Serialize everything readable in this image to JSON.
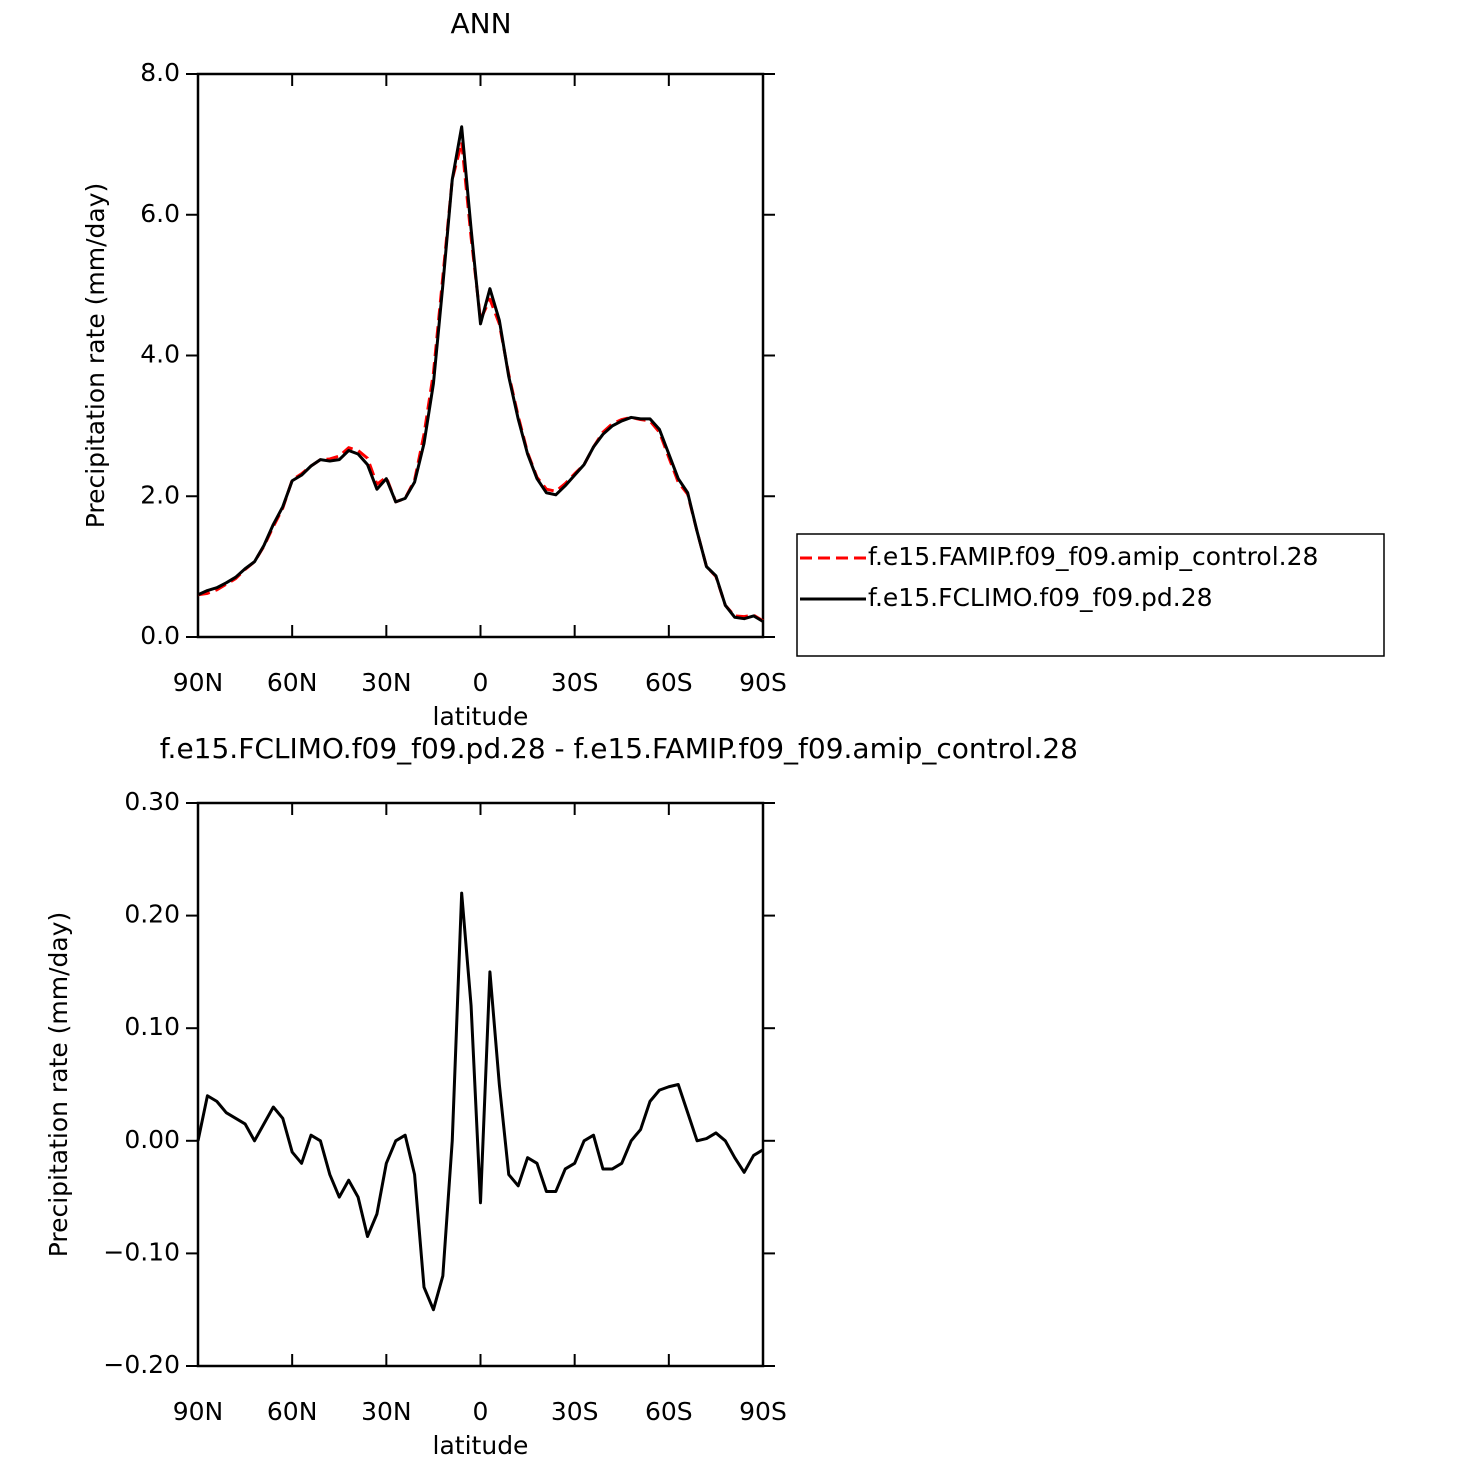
{
  "chart_data": [
    {
      "type": "line",
      "title": "ANN",
      "x_label": "latitude",
      "y_label": "Precipitation rate (mm/day)",
      "x": [
        90,
        87,
        84,
        81,
        78,
        75,
        72,
        69,
        66,
        63,
        60,
        57,
        54,
        51,
        48,
        45,
        42,
        39,
        36,
        33,
        30,
        27,
        24,
        21,
        18,
        15,
        12,
        9,
        6,
        3,
        0,
        -3,
        -6,
        -9,
        -12,
        -15,
        -18,
        -21,
        -24,
        -27,
        -30,
        -33,
        -36,
        -39,
        -42,
        -45,
        -48,
        -51,
        -54,
        -57,
        -60,
        -63,
        -66,
        -69,
        -72,
        -75,
        -78,
        -81,
        -84,
        -87,
        -90
      ],
      "series": [
        {
          "name": "f.e15.FAMIP.f09_f09.amip_control.28",
          "color": "#ff0000",
          "line_style": "dashed",
          "values": [
            0.6,
            0.62,
            0.67,
            0.75,
            0.83,
            0.96,
            1.07,
            1.29,
            1.57,
            1.83,
            2.23,
            2.32,
            2.43,
            2.52,
            2.53,
            2.57,
            2.69,
            2.65,
            2.54,
            2.17,
            2.27,
            1.92,
            1.97,
            2.23,
            2.88,
            3.75,
            5.12,
            6.5,
            7.03,
            5.68,
            4.51,
            4.8,
            4.45,
            3.73,
            3.14,
            2.62,
            2.27,
            2.1,
            2.07,
            2.18,
            2.32,
            2.45,
            2.7,
            2.91,
            3.03,
            3.09,
            3.12,
            3.09,
            3.07,
            2.91,
            2.55,
            2.2,
            2.03,
            1.5,
            1.0,
            0.86,
            0.45,
            0.3,
            0.29,
            0.31,
            0.23
          ]
        },
        {
          "name": "f.e15.FCLIMO.f09_f09.pd.28",
          "color": "#000000",
          "line_style": "solid",
          "values": [
            0.6,
            0.66,
            0.7,
            0.77,
            0.85,
            0.97,
            1.07,
            1.3,
            1.6,
            1.85,
            2.22,
            2.3,
            2.43,
            2.52,
            2.5,
            2.52,
            2.65,
            2.6,
            2.45,
            2.1,
            2.25,
            1.92,
            1.97,
            2.2,
            2.75,
            3.6,
            5.0,
            6.5,
            7.25,
            5.8,
            4.45,
            4.95,
            4.5,
            3.7,
            3.1,
            2.6,
            2.25,
            2.05,
            2.02,
            2.15,
            2.3,
            2.45,
            2.7,
            2.88,
            3.0,
            3.07,
            3.12,
            3.1,
            3.1,
            2.95,
            2.6,
            2.25,
            2.05,
            1.5,
            1.0,
            0.87,
            0.45,
            0.28,
            0.26,
            0.3,
            0.22
          ]
        }
      ],
      "xlim": [
        90,
        -90
      ],
      "xticks": [
        {
          "value": 90,
          "label": "90N"
        },
        {
          "value": 60,
          "label": "60N"
        },
        {
          "value": 30,
          "label": "30N"
        },
        0,
        {
          "value": -30,
          "label": "30S"
        },
        {
          "value": -60,
          "label": "60S"
        },
        {
          "value": -90,
          "label": "90S"
        }
      ],
      "ylim": [
        0,
        8
      ],
      "yticks": [
        {
          "value": 0,
          "label": "0.0"
        },
        {
          "value": 2,
          "label": "2.0"
        },
        {
          "value": 4,
          "label": "4.0"
        },
        {
          "value": 6,
          "label": "6.0"
        },
        {
          "value": 8,
          "label": "8.0"
        }
      ],
      "legend": "right"
    },
    {
      "type": "line",
      "title": "f.e15.FCLIMO.f09_f09.pd.28 - f.e15.FAMIP.f09_f09.amip_control.28",
      "x_label": "latitude",
      "y_label": "Precipitation rate (mm/day)",
      "x": [
        90,
        87,
        84,
        81,
        78,
        75,
        72,
        69,
        66,
        63,
        60,
        57,
        54,
        51,
        48,
        45,
        42,
        39,
        36,
        33,
        30,
        27,
        24,
        21,
        18,
        15,
        12,
        9,
        6,
        3,
        0,
        -3,
        -6,
        -9,
        -12,
        -15,
        -18,
        -21,
        -24,
        -27,
        -30,
        -33,
        -36,
        -39,
        -42,
        -45,
        -48,
        -51,
        -54,
        -57,
        -60,
        -63,
        -66,
        -69,
        -72,
        -75,
        -78,
        -81,
        -84,
        -87,
        -90
      ],
      "series": [
        {
          "color": "#000000",
          "line_style": "solid",
          "values": [
            0.0,
            0.04,
            0.035,
            0.025,
            0.02,
            0.015,
            0.0,
            0.015,
            0.03,
            0.02,
            -0.01,
            -0.02,
            0.005,
            0.0,
            -0.03,
            -0.05,
            -0.035,
            -0.05,
            -0.085,
            -0.065,
            -0.02,
            0.0,
            0.005,
            -0.03,
            -0.13,
            -0.15,
            -0.12,
            0.0,
            0.22,
            0.12,
            -0.055,
            0.15,
            0.05,
            -0.03,
            -0.04,
            -0.015,
            -0.02,
            -0.045,
            -0.045,
            -0.025,
            -0.02,
            0.0,
            0.005,
            -0.025,
            -0.025,
            -0.02,
            0.0,
            0.01,
            0.035,
            0.045,
            0.048,
            0.05,
            0.025,
            0.0,
            0.002,
            0.007,
            0.0,
            -0.015,
            -0.028,
            -0.013,
            -0.008
          ]
        }
      ],
      "xlim": [
        90,
        -90
      ],
      "xticks": [
        {
          "value": 90,
          "label": "90N"
        },
        {
          "value": 60,
          "label": "60N"
        },
        {
          "value": 30,
          "label": "30N"
        },
        0,
        {
          "value": -30,
          "label": "30S"
        },
        {
          "value": -60,
          "label": "60S"
        },
        {
          "value": -90,
          "label": "90S"
        }
      ],
      "ylim": [
        -0.2,
        0.3
      ],
      "yticks": [
        {
          "value": -0.2,
          "label": "−0.20"
        },
        {
          "value": -0.1,
          "label": "−0.10"
        },
        {
          "value": 0,
          "label": "0.00"
        },
        {
          "value": 0.1,
          "label": "0.10"
        },
        {
          "value": 0.2,
          "label": "0.20"
        },
        {
          "value": 0.3,
          "label": "0.30"
        }
      ]
    }
  ]
}
